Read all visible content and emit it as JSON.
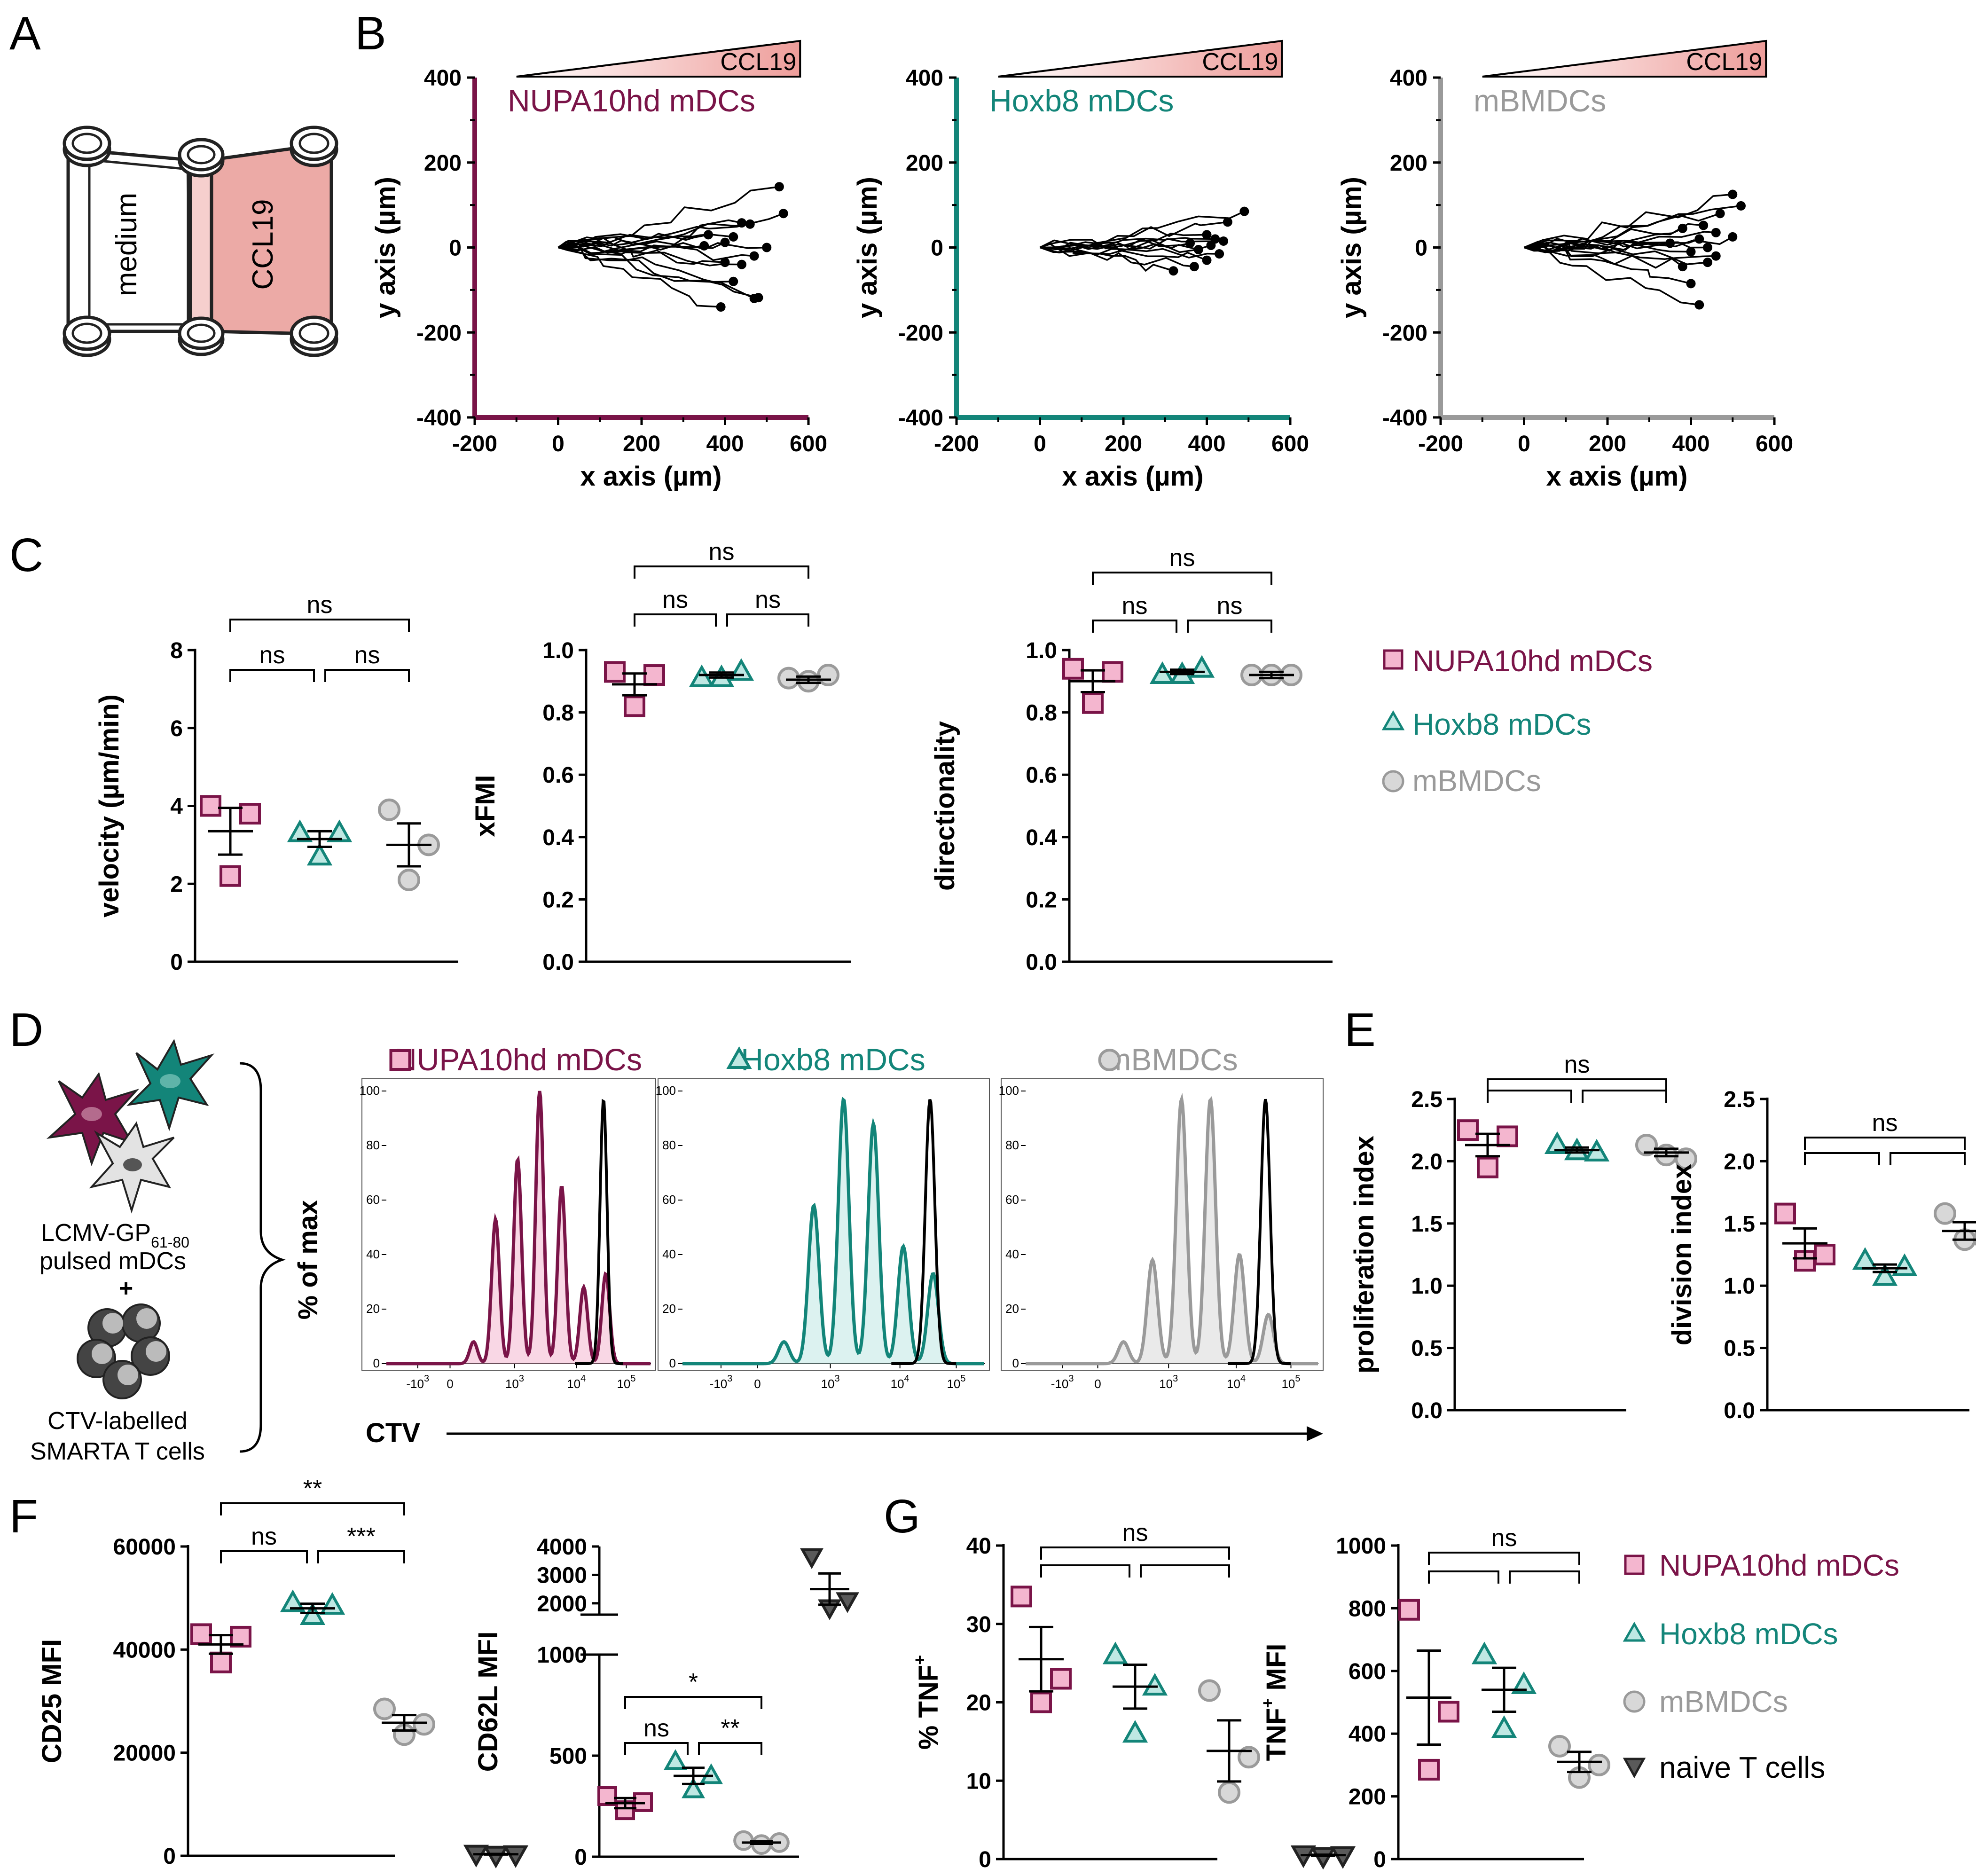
{
  "panel_letters": [
    "A",
    "B",
    "C",
    "D",
    "E",
    "F",
    "G"
  ],
  "colors": {
    "nupa": "#7a1448",
    "nupa_fill": "#f4b6cf",
    "hoxb8": "#138579",
    "hoxb8_fill": "#bfe8e3",
    "mbmdc": "#9a9a9a",
    "mbmdc_fill": "#d8d8d8",
    "naive": "#5a5a5a",
    "chamber_fill": "#ecaaa6",
    "gradient_end": "#ee9d9a"
  },
  "panelA": {
    "left_label": "medium",
    "right_label": "CCL19"
  },
  "legend": {
    "nupa": "NUPA10hd mDCs",
    "hoxb8": "Hoxb8 mDCs",
    "mbmdc": "mBMDCs",
    "naive": "naive T cells"
  },
  "panelD": {
    "text_line1": "LCMV-GP",
    "text_subscript": "61-80",
    "text_line2": "pulsed mDCs",
    "plus": "+",
    "text_line3": "CTV-labelled",
    "text_line4": "SMARTA T cells",
    "ylabel": "% of max",
    "xlabel": "CTV"
  },
  "chart_data": [
    {
      "panel": "B",
      "type": "line",
      "title": "NUPA10hd mDCs",
      "gradient_label": "CCL19",
      "xlabel": "x axis (µm)",
      "ylabel": "y axis (µm)",
      "xlim": [
        -200,
        600
      ],
      "ylim": [
        -400,
        400
      ],
      "xticks": [
        -200,
        0,
        200,
        400,
        600
      ],
      "yticks": [
        -400,
        -200,
        0,
        200,
        400
      ],
      "track_endpoints": [
        [
          530,
          143
        ],
        [
          540,
          80
        ],
        [
          440,
          58
        ],
        [
          360,
          30
        ],
        [
          420,
          25
        ],
        [
          400,
          12
        ],
        [
          350,
          4
        ],
        [
          500,
          0
        ],
        [
          470,
          -20
        ],
        [
          400,
          -35
        ],
        [
          440,
          -40
        ],
        [
          420,
          -80
        ],
        [
          470,
          -120
        ],
        [
          480,
          -118
        ],
        [
          390,
          -140
        ],
        [
          460,
          55
        ]
      ]
    },
    {
      "panel": "B",
      "type": "line",
      "title": "Hoxb8 mDCs",
      "gradient_label": "CCL19",
      "xlabel": "x axis (µm)",
      "ylabel": "y axis (µm)",
      "xlim": [
        -200,
        600
      ],
      "ylim": [
        -400,
        400
      ],
      "xticks": [
        -200,
        0,
        200,
        400,
        600
      ],
      "yticks": [
        -400,
        -200,
        0,
        200,
        400
      ],
      "track_endpoints": [
        [
          490,
          85
        ],
        [
          450,
          60
        ],
        [
          400,
          30
        ],
        [
          420,
          20
        ],
        [
          440,
          15
        ],
        [
          360,
          10
        ],
        [
          410,
          5
        ],
        [
          380,
          -5
        ],
        [
          430,
          -15
        ],
        [
          400,
          -30
        ],
        [
          370,
          -45
        ],
        [
          320,
          -55
        ]
      ]
    },
    {
      "panel": "B",
      "type": "line",
      "title": "mBMDCs",
      "gradient_label": "CCL19",
      "xlabel": "x axis (µm)",
      "ylabel": "y axis (µm)",
      "xlim": [
        -200,
        600
      ],
      "ylim": [
        -400,
        400
      ],
      "xticks": [
        -200,
        0,
        200,
        400,
        600
      ],
      "yticks": [
        -400,
        -200,
        0,
        200,
        400
      ],
      "track_endpoints": [
        [
          500,
          125
        ],
        [
          520,
          98
        ],
        [
          470,
          80
        ],
        [
          430,
          52
        ],
        [
          380,
          45
        ],
        [
          460,
          35
        ],
        [
          500,
          25
        ],
        [
          420,
          20
        ],
        [
          350,
          10
        ],
        [
          440,
          0
        ],
        [
          400,
          -10
        ],
        [
          460,
          -20
        ],
        [
          440,
          -35
        ],
        [
          380,
          -45
        ],
        [
          400,
          -85
        ],
        [
          420,
          -135
        ]
      ]
    },
    {
      "panel": "C",
      "type": "scatter",
      "ylabel": "velocity (µm/min)",
      "ylim": [
        0,
        8
      ],
      "yticks": [
        0,
        2,
        4,
        6,
        8
      ],
      "groups": [
        {
          "name": "NUPA10hd mDCs",
          "values": [
            4.0,
            3.8,
            2.2
          ],
          "mean": 3.35,
          "sem": 0.6
        },
        {
          "name": "Hoxb8 mDCs",
          "values": [
            3.3,
            3.3,
            2.7
          ],
          "mean": 3.15,
          "sem": 0.2
        },
        {
          "name": "mBMDCs",
          "values": [
            3.9,
            3.0,
            2.1
          ],
          "mean": 3.0,
          "sem": 0.55
        }
      ],
      "comparisons": [
        {
          "from": 0,
          "to": 1,
          "label": "ns",
          "level": 1
        },
        {
          "from": 1,
          "to": 2,
          "label": "ns",
          "level": 1
        },
        {
          "from": 0,
          "to": 2,
          "label": "ns",
          "level": 2
        }
      ]
    },
    {
      "panel": "C",
      "type": "scatter",
      "ylabel": "xFMI",
      "ylim": [
        0,
        1.0
      ],
      "yticks": [
        0.0,
        0.2,
        0.4,
        0.6,
        0.8,
        1.0
      ],
      "tick_decimals": 1,
      "groups": [
        {
          "name": "NUPA10hd mDCs",
          "values": [
            0.93,
            0.92,
            0.82
          ],
          "mean": 0.89,
          "sem": 0.035
        },
        {
          "name": "Hoxb8 mDCs",
          "values": [
            0.91,
            0.93,
            0.91
          ],
          "mean": 0.92,
          "sem": 0.008
        },
        {
          "name": "mBMDCs",
          "values": [
            0.91,
            0.92,
            0.9
          ],
          "mean": 0.905,
          "sem": 0.01
        }
      ],
      "comparisons": [
        {
          "from": 0,
          "to": 1,
          "label": "ns",
          "level": 1
        },
        {
          "from": 1,
          "to": 2,
          "label": "ns",
          "level": 1
        },
        {
          "from": 0,
          "to": 2,
          "label": "ns",
          "level": 2
        }
      ]
    },
    {
      "panel": "C",
      "type": "scatter",
      "ylabel": "directionality",
      "ylim": [
        0,
        1.0
      ],
      "yticks": [
        0.0,
        0.2,
        0.4,
        0.6,
        0.8,
        1.0
      ],
      "tick_decimals": 1,
      "groups": [
        {
          "name": "NUPA10hd mDCs",
          "values": [
            0.94,
            0.93,
            0.83
          ],
          "mean": 0.9,
          "sem": 0.035
        },
        {
          "name": "Hoxb8 mDCs",
          "values": [
            0.92,
            0.94,
            0.92
          ],
          "mean": 0.93,
          "sem": 0.007
        },
        {
          "name": "mBMDCs",
          "values": [
            0.92,
            0.92,
            0.92
          ],
          "mean": 0.92,
          "sem": 0.01
        }
      ],
      "comparisons": [
        {
          "from": 0,
          "to": 1,
          "label": "ns",
          "level": 1
        },
        {
          "from": 1,
          "to": 2,
          "label": "ns",
          "level": 1
        },
        {
          "from": 0,
          "to": 2,
          "label": "ns",
          "level": 2
        }
      ]
    },
    {
      "panel": "D",
      "type": "area",
      "title": "NUPA10hd mDCs",
      "group": "nupa",
      "ylabel": "% of max",
      "xlabel": "CTV",
      "yticks": [
        0,
        20,
        40,
        60,
        80,
        100
      ],
      "xtick_labels": [
        "-10^3",
        "0",
        "10^3",
        "10^4",
        "10^5"
      ],
      "peak_heights": [
        8,
        53,
        75,
        100,
        65,
        28,
        33
      ],
      "undivided_peak_height": 97
    },
    {
      "panel": "D",
      "type": "area",
      "title": "Hoxb8 mDCs",
      "group": "hoxb8",
      "ylabel": "% of max",
      "xlabel": "CTV",
      "yticks": [
        0,
        20,
        40,
        60,
        80,
        100
      ],
      "xtick_labels": [
        "-10^3",
        "0",
        "10^3",
        "10^4",
        "10^5"
      ],
      "peak_heights": [
        8,
        58,
        97,
        88,
        43,
        33
      ],
      "undivided_peak_height": 97
    },
    {
      "panel": "D",
      "type": "area",
      "title": "mBMDCs",
      "group": "mbmdc",
      "ylabel": "% of max",
      "xlabel": "CTV",
      "yticks": [
        0,
        20,
        40,
        60,
        80,
        100
      ],
      "xtick_labels": [
        "-10^3",
        "0",
        "10^3",
        "10^4",
        "10^5"
      ],
      "peak_heights": [
        8,
        38,
        97,
        97,
        40,
        18
      ],
      "undivided_peak_height": 97
    },
    {
      "panel": "E",
      "type": "scatter",
      "ylabel": "proliferation  index",
      "ylim": [
        0,
        2.5
      ],
      "yticks": [
        0.0,
        0.5,
        1.0,
        1.5,
        2.0,
        2.5
      ],
      "tick_decimals": 1,
      "groups": [
        {
          "name": "NUPA10hd mDCs",
          "values": [
            2.25,
            2.2,
            1.95
          ],
          "mean": 2.13,
          "sem": 0.09
        },
        {
          "name": "Hoxb8 mDCs",
          "values": [
            2.13,
            2.07,
            2.08
          ],
          "mean": 2.09,
          "sem": 0.02
        },
        {
          "name": "mBMDCs",
          "values": [
            2.13,
            2.02,
            2.05
          ],
          "mean": 2.07,
          "sem": 0.03
        }
      ],
      "comparisons": [
        {
          "from": 0,
          "to": 1,
          "label": "",
          "level": 1
        },
        {
          "from": 1,
          "to": 2,
          "label": "",
          "level": 1
        },
        {
          "from": 0,
          "to": 2,
          "label": "ns",
          "level": 2
        }
      ]
    },
    {
      "panel": "E",
      "type": "scatter",
      "ylabel": "division index",
      "ylim": [
        0,
        2.5
      ],
      "yticks": [
        0.0,
        0.5,
        1.0,
        1.5,
        2.0,
        2.5
      ],
      "tick_decimals": 1,
      "groups": [
        {
          "name": "NUPA10hd mDCs",
          "values": [
            1.58,
            1.25,
            1.2
          ],
          "mean": 1.34,
          "sem": 0.12
        },
        {
          "name": "Hoxb8 mDCs",
          "values": [
            1.2,
            1.15,
            1.07
          ],
          "mean": 1.14,
          "sem": 0.03
        },
        {
          "name": "mBMDCs",
          "values": [
            1.58,
            1.38,
            1.37
          ],
          "mean": 1.44,
          "sem": 0.07
        }
      ],
      "comparisons": [
        {
          "from": 0,
          "to": 1,
          "label": "",
          "level": 1
        },
        {
          "from": 1,
          "to": 2,
          "label": "",
          "level": 1
        },
        {
          "from": 0,
          "to": 2,
          "label": "ns",
          "level": 2
        }
      ]
    },
    {
      "panel": "F",
      "type": "scatter",
      "ylabel": "CD25 MFI",
      "ylim": [
        0,
        60000
      ],
      "yticks": [
        0,
        20000,
        40000,
        60000
      ],
      "groups": [
        {
          "name": "NUPA10hd mDCs",
          "values": [
            43000,
            42500,
            37500
          ],
          "mean": 41000,
          "sem": 1800
        },
        {
          "name": "Hoxb8 mDCs",
          "values": [
            49000,
            48500,
            46500
          ],
          "mean": 48000,
          "sem": 900
        },
        {
          "name": "mBMDCs",
          "values": [
            28500,
            25500,
            23500
          ],
          "mean": 25800,
          "sem": 1500
        },
        {
          "name": "naive T cells",
          "values": [
            400,
            300,
            200
          ],
          "mean": 300,
          "sem": 60
        }
      ],
      "comparisons": [
        {
          "from": 0,
          "to": 1,
          "label": "ns",
          "level": 1
        },
        {
          "from": 1,
          "to": 2,
          "label": "***",
          "level": 1
        },
        {
          "from": 0,
          "to": 2,
          "label": "**",
          "level": 2
        }
      ]
    },
    {
      "panel": "F",
      "type": "scatter",
      "ylabel": "CD62L MFI",
      "axis_break": true,
      "ylim_lower": [
        0,
        1000
      ],
      "ylim_upper": [
        1600,
        4000
      ],
      "yticks_lower": [
        0,
        500,
        1000
      ],
      "yticks_upper": [
        2000,
        3000,
        4000
      ],
      "groups": [
        {
          "name": "NUPA10hd mDCs",
          "values": [
            300,
            270,
            230
          ],
          "mean": 265,
          "sem": 25
        },
        {
          "name": "Hoxb8 mDCs",
          "values": [
            470,
            400,
            330
          ],
          "mean": 400,
          "sem": 40
        },
        {
          "name": "mBMDCs",
          "values": [
            80,
            70,
            60
          ],
          "mean": 70,
          "sem": 6
        },
        {
          "name": "naive T cells",
          "values": [
            3650,
            2100,
            1850
          ],
          "mean": 2500,
          "sem": 550
        }
      ],
      "comparisons": [
        {
          "from": 0,
          "to": 1,
          "label": "ns",
          "level": 1
        },
        {
          "from": 1,
          "to": 2,
          "label": "**",
          "level": 1
        },
        {
          "from": 0,
          "to": 2,
          "label": "*",
          "level": 2
        }
      ]
    },
    {
      "panel": "G",
      "type": "scatter",
      "ylabel": "% TNF",
      "ylabel_superscript": "+",
      "ylim": [
        0,
        40
      ],
      "yticks": [
        0,
        10,
        20,
        30,
        40
      ],
      "groups": [
        {
          "name": "NUPA10hd mDCs",
          "values": [
            33.5,
            23,
            20
          ],
          "mean": 25.5,
          "sem": 4.1
        },
        {
          "name": "Hoxb8 mDCs",
          "values": [
            26,
            22,
            16
          ],
          "mean": 22.0,
          "sem": 2.8
        },
        {
          "name": "mBMDCs",
          "values": [
            21.5,
            13,
            8.5
          ],
          "mean": 13.8,
          "sem": 3.9
        },
        {
          "name": "naive T cells",
          "values": [
            0.6,
            0.5,
            0.4
          ],
          "mean": 0.5,
          "sem": 0.06
        }
      ],
      "comparisons": [
        {
          "from": 0,
          "to": 1,
          "label": "",
          "level": 1
        },
        {
          "from": 1,
          "to": 2,
          "label": "",
          "level": 1
        },
        {
          "from": 0,
          "to": 2,
          "label": "ns",
          "level": 2
        }
      ]
    },
    {
      "panel": "G",
      "type": "scatter",
      "ylabel": "TNF",
      "ylabel_superscript": "+",
      "ylabel_suffix": " MFI",
      "ylim": [
        0,
        1000
      ],
      "yticks": [
        0,
        200,
        400,
        600,
        800,
        1000
      ],
      "groups": [
        {
          "name": "NUPA10hd mDCs",
          "values": [
            795,
            470,
            285
          ],
          "mean": 515,
          "sem": 150
        },
        {
          "name": "Hoxb8 mDCs",
          "values": [
            650,
            555,
            415
          ],
          "mean": 540,
          "sem": 70
        },
        {
          "name": "mBMDCs",
          "values": [
            360,
            300,
            260
          ],
          "mean": 310,
          "sem": 32
        }
      ],
      "comparisons": [
        {
          "from": 0,
          "to": 1,
          "label": "",
          "level": 1
        },
        {
          "from": 1,
          "to": 2,
          "label": "",
          "level": 1
        },
        {
          "from": 0,
          "to": 2,
          "label": "ns",
          "level": 2
        }
      ]
    }
  ]
}
